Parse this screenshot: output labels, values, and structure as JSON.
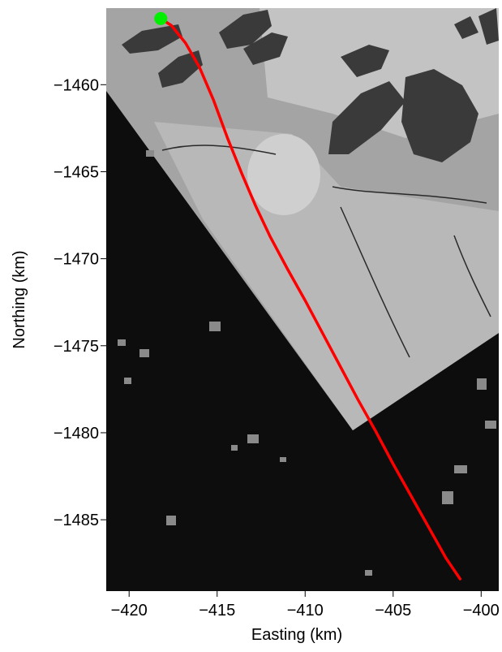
{
  "chart_data": {
    "type": "line",
    "title": "",
    "xlabel": "Easting (km)",
    "ylabel": "Northing (km)",
    "xlim": [
      -421.3,
      -399.0
    ],
    "ylim": [
      -1489.1,
      -1455.6
    ],
    "x_ticks": [
      -420,
      -415,
      -410,
      -405,
      -400
    ],
    "y_ticks": [
      -1460,
      -1465,
      -1470,
      -1475,
      -1480,
      -1485
    ],
    "x_tick_labels": [
      "−420",
      "−415",
      "−410",
      "−405",
      "−400"
    ],
    "y_tick_labels": [
      "−1460",
      "−1465",
      "−1470",
      "−1475",
      "−1480",
      "−1485"
    ],
    "grid": false,
    "background": "satellite imagery (grayscale): ice shelf and rock outcrops top, open dark water with ice floes bottom-left",
    "series": [
      {
        "color": "#ff0000",
        "x": [
          -418.2,
          -417.6,
          -416.8,
          -416.0,
          -415.2,
          -414.4,
          -413.6,
          -412.8,
          -412.0,
          -411.0,
          -410.0,
          -409.0,
          -408.0,
          -407.0,
          -406.0,
          -405.0,
          -404.0,
          -403.0,
          -402.0,
          -401.2
        ],
        "y": [
          -1456.2,
          -1456.6,
          -1457.6,
          -1459.0,
          -1460.9,
          -1463.1,
          -1465.1,
          -1467.0,
          -1468.7,
          -1470.6,
          -1472.4,
          -1474.3,
          -1476.2,
          -1478.1,
          -1479.9,
          -1481.8,
          -1483.6,
          -1485.4,
          -1487.2,
          -1488.4
        ]
      }
    ],
    "start_marker": {
      "x": -418.2,
      "y": -1456.2,
      "color": "#00ee00"
    }
  }
}
